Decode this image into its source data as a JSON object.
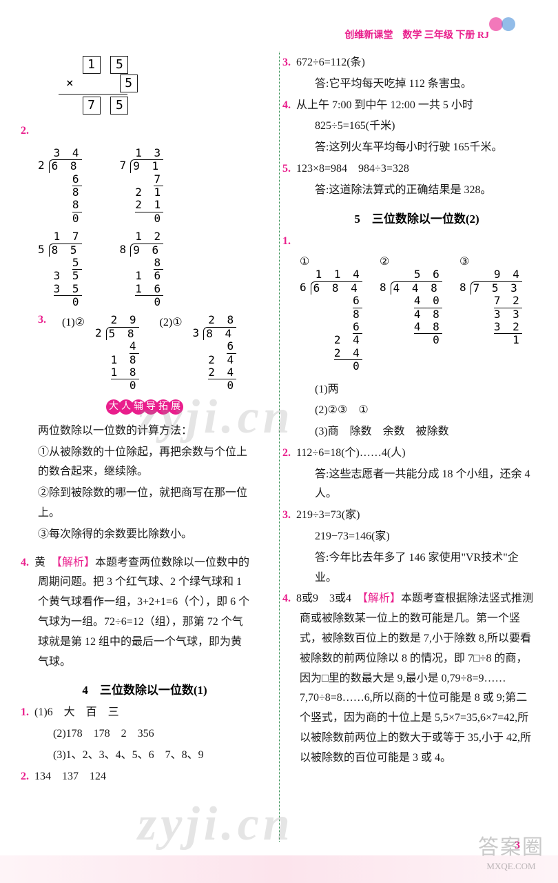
{
  "header": {
    "title": "创维新课堂　数学 三年级 下册 RJ"
  },
  "left": {
    "mult": {
      "r1a": "1",
      "r1b": "5",
      "r2a": "×",
      "r2b": "5",
      "r3a": "7",
      "r3b": "5"
    },
    "q2_label": "2.",
    "div1": {
      "q": "3 4",
      "d": "2",
      "n": "6 8",
      "w1": "6  ",
      "w2": "8",
      "w3": "8",
      "w4": "0"
    },
    "div2": {
      "q": "1 3",
      "d": "7",
      "n": "9 1",
      "w1": "7  ",
      "w2": "2 1",
      "w3": "2 1",
      "w4": "0"
    },
    "div3": {
      "q": "1 7",
      "d": "5",
      "n": "8 5",
      "w1": "5  ",
      "w2": "3 5",
      "w3": "3 5",
      "w4": "0"
    },
    "div4": {
      "q": "1 2",
      "d": "8",
      "n": "9 6",
      "w1": "8  ",
      "w2": "1 6",
      "w3": "1 6",
      "w4": "0"
    },
    "q3_label": "3.",
    "q3_1": "(1)②",
    "q3_2": "(2)①",
    "div5": {
      "q": "2 9",
      "d": "2",
      "n": "5 8",
      "w1": "4  ",
      "w2": "1 8",
      "w3": "1 8",
      "w4": "0"
    },
    "div6": {
      "q": "2 8",
      "d": "3",
      "n": "8 4",
      "w1": "6  ",
      "w2": "2 4",
      "w3": "2 4",
      "w4": "0"
    },
    "badge_chars": "大人辅导拓展",
    "method": {
      "title": "两位数除以一位数的计算方法：",
      "m1": "①从被除数的十位除起，再把余数与个位上的数合起来，继续除。",
      "m2": "②除到被除数的哪一位，就把商写在那一位上。",
      "m3": "③每次除得的余数要比除数小。"
    },
    "q4_label": "4.",
    "q4": "黄　【解析】本题考查两位数除以一位数中的周期问题。把 3 个红气球、2 个绿气球和 1 个黄气球看作一组，3+2+1=6（个），即 6 个气球为一组。72÷6=12（组），那第 72 个气球就是第 12 组中的最后一个气球，即为黄气球。",
    "sec4_title": "4　三位数除以一位数(1)",
    "s4q1_label": "1.",
    "s4q1_1": "(1)6　大　百　三",
    "s4q1_2": "(2)178　178　2　356",
    "s4q1_3": "(3)1、2、3、4、5、6　7、8、9",
    "s4q2_label": "2.",
    "s4q2": "134　137　124"
  },
  "right": {
    "q3_label": "3.",
    "q3a": "672÷6=112(条)",
    "q3b": "答:它平均每天吃掉 112 条害虫。",
    "q4_label": "4.",
    "q4a": "从上午 7:00 到中午 12:00 一共 5 小时",
    "q4b": "825÷5=165(千米)",
    "q4c": "答:这列火车平均每小时行驶 165千米。",
    "q5_label": "5.",
    "q5a": "123×8=984　984÷3=328",
    "q5b": "答:这道除法算式的正确结果是 328。",
    "sec5_title": "5　三位数除以一位数(2)",
    "s5q1_label": "1.",
    "s5q1_c1": "①",
    "s5q1_c2": "②",
    "s5q1_c3": "③",
    "rdiv1": {
      "q": "1 1 4",
      "d": "6",
      "n": "6 8 4",
      "w1": "6    ",
      "w2": "8  ",
      "w3": "6  ",
      "w4": "2 4",
      "w5": "2 4",
      "w6": "0"
    },
    "rdiv2": {
      "q": "5 6",
      "d": "8",
      "n": "4 4 8",
      "w1": "4 0  ",
      "w2": "4 8",
      "w3": "4 8",
      "w4": "0"
    },
    "rdiv3": {
      "q": "9 4",
      "d": "8",
      "n": "7 5 3",
      "w1": "7 2  ",
      "w2": "3 3",
      "w3": "3 2",
      "w4": "1"
    },
    "s5q1_1": "(1)两",
    "s5q1_2": "(2)②③　①",
    "s5q1_3": "(3)商　除数　余数　被除数",
    "s5q2_label": "2.",
    "s5q2a": "112÷6=18(个)……4(人)",
    "s5q2b": "答:这些志愿者一共能分成 18 个小组，还余 4 人。",
    "s5q3_label": "3.",
    "s5q3a": "219÷3=73(家)",
    "s5q3b": "219−73=146(家)",
    "s5q3c": "答:今年比去年多了 146 家使用\"VR技术\"企业。",
    "s5q4_label": "4.",
    "s5q4": "8或9　3或4　【解析】本题考查根据除法竖式推测商或被除数某一位上的数可能是几。第一个竖式，被除数百位上的数是 7,小于除数 8,所以要看被除数的前两位除以 8 的情况，即 7□÷8 的商，因为□里的数最大是 9,最小是 0,79÷8=9……7,70÷8=8……6,所以商的十位可能是 8 或 9;第二个竖式，因为商的十位上是 5,5×7=35,6×7=42,所以被除数前两位上的数大于或等于 35,小于 42,所以被除数的百位可能是 3 或 4。"
  },
  "page_num": "3",
  "watermark": "zyji.cn",
  "corner_big": "答案圈",
  "corner_small": "MXQE.COM"
}
